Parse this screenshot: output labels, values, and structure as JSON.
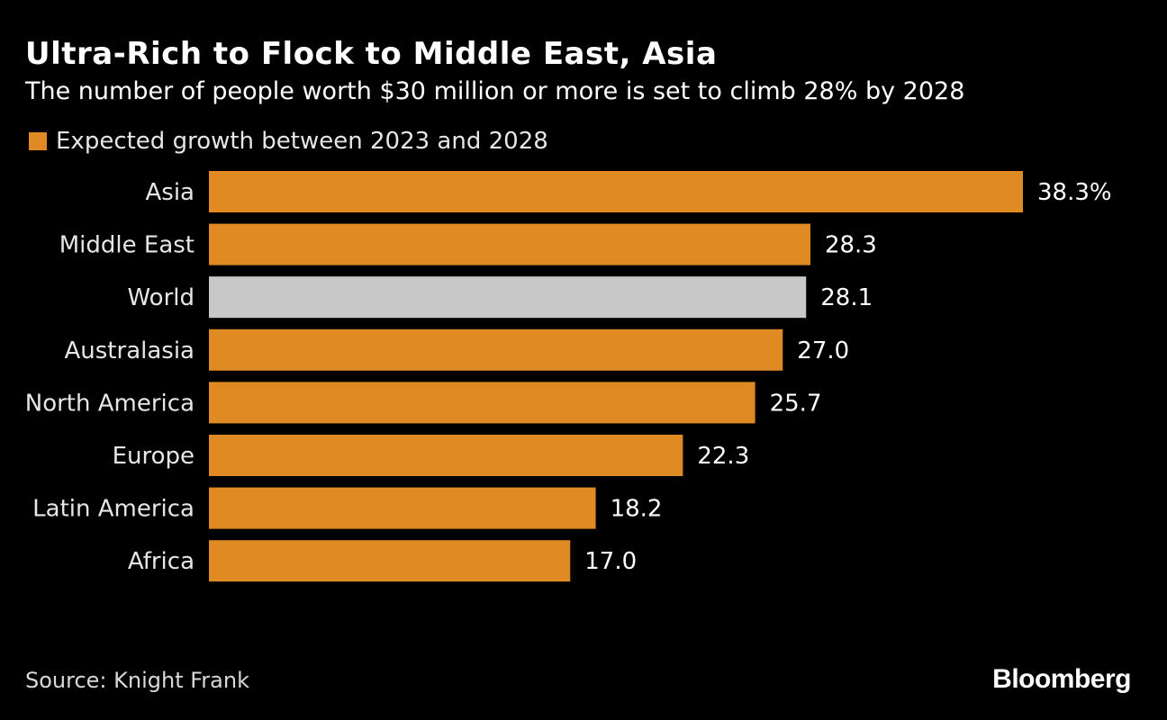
{
  "title": "Ultra-Rich to Flock to Middle East, Asia",
  "subtitle": "The number of people worth $30 million or more is set to climb 28% by 2028",
  "legend": {
    "label": "Expected growth between 2023 and 2028",
    "color": "#e08a24"
  },
  "source": "Source: Knight Frank",
  "brand": "Bloomberg",
  "colors": {
    "background": "#000000",
    "accent": "#e08a24",
    "highlight": "#c8c8c8",
    "text": "#ffffff"
  },
  "chart_data": {
    "type": "bar",
    "orientation": "horizontal",
    "title": "Ultra-Rich to Flock to Middle East, Asia",
    "subtitle": "The number of people worth $30 million or more is set to climb 28% by 2028",
    "categories": [
      "Asia",
      "Middle East",
      "World",
      "Australasia",
      "North America",
      "Europe",
      "Latin America",
      "Africa"
    ],
    "values": [
      38.3,
      28.3,
      28.1,
      27.0,
      25.7,
      22.3,
      18.2,
      17.0
    ],
    "value_labels": [
      "38.3%",
      "28.3",
      "28.1",
      "27.0",
      "25.7",
      "22.3",
      "18.2",
      "17.0"
    ],
    "highlighted_category": "World",
    "series": [
      {
        "name": "Expected growth between 2023 and 2028",
        "values": [
          38.3,
          28.3,
          28.1,
          27.0,
          25.7,
          22.3,
          18.2,
          17.0
        ]
      }
    ],
    "xlabel": "",
    "ylabel": "",
    "xlim": [
      0,
      38.3
    ],
    "grid": false,
    "legend_position": "top-left"
  }
}
